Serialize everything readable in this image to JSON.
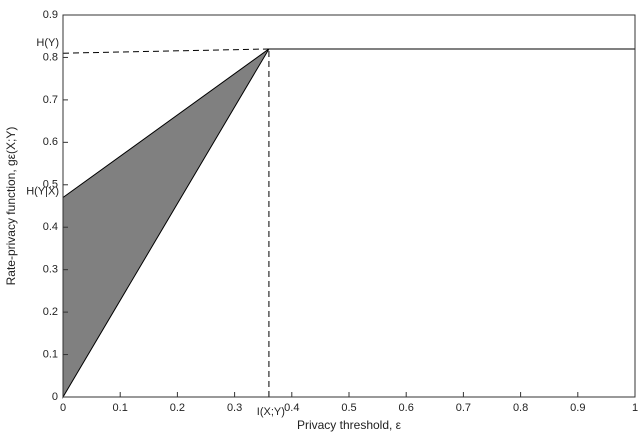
{
  "chart_data": {
    "type": "line",
    "x_label": "Privacy threshold, ε",
    "y_label": "Rate-privacy function, gε(X;Y)",
    "xlim": [
      0,
      1
    ],
    "xticks": [
      0,
      0.1,
      0.2,
      0.3,
      0.4,
      0.5,
      0.6,
      0.7,
      0.8,
      0.9,
      1
    ],
    "ylim": [
      0,
      0.9
    ],
    "yticks": [
      0,
      0.1,
      0.2,
      0.3,
      0.4,
      0.5,
      0.6,
      0.7,
      0.8,
      0.9
    ],
    "region": {
      "x": [
        0,
        0,
        0.36
      ],
      "values": [
        0,
        0.47,
        0.82
      ],
      "color": "#808080"
    },
    "series": [
      {
        "x": [
          0.36,
          1
        ],
        "values": [
          0.82,
          0.82
        ],
        "color": "#000000"
      }
    ],
    "guides": [
      {
        "x": [
          0,
          0.36
        ],
        "values": [
          0.81,
          0.82
        ],
        "color": "#000000"
      },
      {
        "x": [
          0.36,
          0.36
        ],
        "values": [
          0,
          0.82
        ],
        "color": "#000000"
      }
    ],
    "annotations": [
      {
        "text": "H(Y)",
        "axis": "y",
        "at": 0.82
      },
      {
        "text": "H(Y|X)",
        "axis": "y",
        "at": 0.47
      },
      {
        "text": "I(X;Y)",
        "axis": "x",
        "at": 0.36
      }
    ]
  }
}
